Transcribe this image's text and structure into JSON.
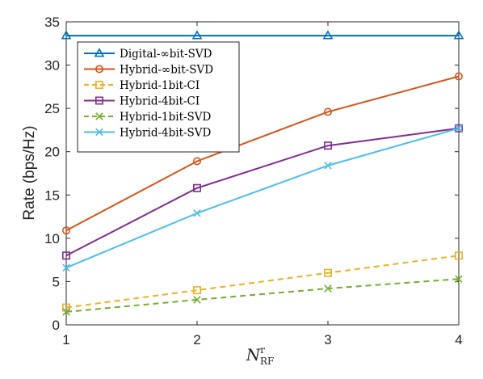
{
  "chart_data": {
    "type": "line",
    "x": [
      1,
      2,
      3,
      4
    ],
    "xlim": [
      1,
      4
    ],
    "ylim": [
      0,
      35
    ],
    "xticks": [
      1,
      2,
      3,
      4
    ],
    "yticks": [
      0,
      5,
      10,
      15,
      20,
      25,
      30,
      35
    ],
    "ylabel": "Rate (bps/Hz)",
    "xlabel": {
      "base": "N",
      "superscript": "r",
      "subscript": "RF"
    },
    "grid": false,
    "legend_position": "upper-left",
    "series": [
      {
        "name": "Digital-∞bit-SVD",
        "values": [
          33.4,
          33.4,
          33.4,
          33.4
        ],
        "color": "#0072BD",
        "marker": "triangle",
        "dashed": false
      },
      {
        "name": "Hybrid-∞bit-SVD",
        "values": [
          10.9,
          18.9,
          24.6,
          28.7
        ],
        "color": "#D95319",
        "marker": "circle",
        "dashed": false
      },
      {
        "name": "Hybrid-1bit-CI",
        "values": [
          2.0,
          4.0,
          6.0,
          8.0
        ],
        "color": "#EDB120",
        "marker": "square",
        "dashed": true
      },
      {
        "name": "Hybrid-4bit-CI",
        "values": [
          8.0,
          15.8,
          20.7,
          22.7
        ],
        "color": "#7E2F8E",
        "marker": "square",
        "dashed": false
      },
      {
        "name": "Hybrid-1bit-SVD",
        "values": [
          1.5,
          2.9,
          4.2,
          5.3
        ],
        "color": "#77AC30",
        "marker": "x",
        "dashed": true
      },
      {
        "name": "Hybrid-4bit-SVD",
        "values": [
          6.6,
          12.9,
          18.4,
          22.7
        ],
        "color": "#4DBEEE",
        "marker": "x",
        "dashed": false
      }
    ]
  }
}
